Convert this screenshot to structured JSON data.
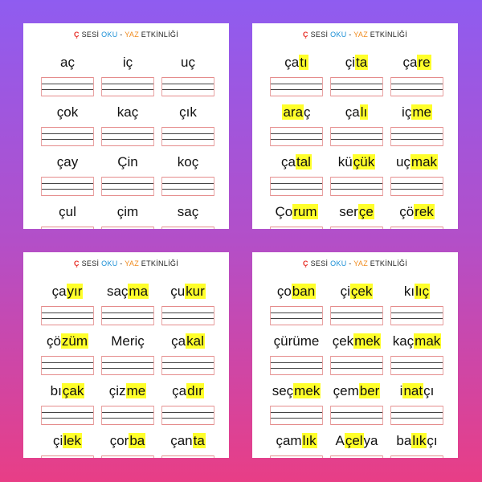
{
  "title": {
    "letter": "Ç",
    "sesi": " SESİ ",
    "oku": "OKU",
    "dash": " - ",
    "yaz": "YAZ",
    "rest": " ETKİNLİĞİ"
  },
  "pages": [
    {
      "words": [
        {
          "pre": "aç",
          "hl": "",
          "post": ""
        },
        {
          "pre": "iç",
          "hl": "",
          "post": ""
        },
        {
          "pre": "uç",
          "hl": "",
          "post": ""
        },
        {
          "pre": "çok",
          "hl": "",
          "post": ""
        },
        {
          "pre": "kaç",
          "hl": "",
          "post": ""
        },
        {
          "pre": "çık",
          "hl": "",
          "post": ""
        },
        {
          "pre": "çay",
          "hl": "",
          "post": ""
        },
        {
          "pre": "Çin",
          "hl": "",
          "post": ""
        },
        {
          "pre": "koç",
          "hl": "",
          "post": ""
        },
        {
          "pre": "çul",
          "hl": "",
          "post": ""
        },
        {
          "pre": "çim",
          "hl": "",
          "post": ""
        },
        {
          "pre": "saç",
          "hl": "",
          "post": ""
        }
      ]
    },
    {
      "words": [
        {
          "pre": "ça",
          "hl": "tı",
          "post": ""
        },
        {
          "pre": "çi",
          "hl": "ta",
          "post": ""
        },
        {
          "pre": "ça",
          "hl": "re",
          "post": ""
        },
        {
          "pre": "",
          "hl": "ara",
          "post": "ç"
        },
        {
          "pre": "ça",
          "hl": "lı",
          "post": ""
        },
        {
          "pre": "iç",
          "hl": "me",
          "post": ""
        },
        {
          "pre": "ça",
          "hl": "tal",
          "post": ""
        },
        {
          "pre": "kü",
          "hl": "çük",
          "post": ""
        },
        {
          "pre": "uç",
          "hl": "mak",
          "post": ""
        },
        {
          "pre": "Ço",
          "hl": "rum",
          "post": ""
        },
        {
          "pre": "ser",
          "hl": "çe",
          "post": ""
        },
        {
          "pre": "çö",
          "hl": "rek",
          "post": ""
        }
      ]
    },
    {
      "words": [
        {
          "pre": "ça",
          "hl": "yır",
          "post": ""
        },
        {
          "pre": "saç",
          "hl": "ma",
          "post": ""
        },
        {
          "pre": "çu",
          "hl": "kur",
          "post": ""
        },
        {
          "pre": "çö",
          "hl": "züm",
          "post": ""
        },
        {
          "pre": "Meriç",
          "hl": "",
          "post": ""
        },
        {
          "pre": "ça",
          "hl": "kal",
          "post": ""
        },
        {
          "pre": "bı",
          "hl": "çak",
          "post": ""
        },
        {
          "pre": "çiz",
          "hl": "me",
          "post": ""
        },
        {
          "pre": "ça",
          "hl": "dır",
          "post": ""
        },
        {
          "pre": "çi",
          "hl": "lek",
          "post": ""
        },
        {
          "pre": "çor",
          "hl": "ba",
          "post": ""
        },
        {
          "pre": "çan",
          "hl": "ta",
          "post": ""
        }
      ]
    },
    {
      "words": [
        {
          "pre": "ço",
          "hl": "ban",
          "post": ""
        },
        {
          "pre": "çi",
          "hl": "çek",
          "post": ""
        },
        {
          "pre": "kı",
          "hl": "lıç",
          "post": ""
        },
        {
          "pre": "çürüme",
          "hl": "",
          "post": ""
        },
        {
          "pre": "çek",
          "hl": "mek",
          "post": ""
        },
        {
          "pre": "kaç",
          "hl": "mak",
          "post": ""
        },
        {
          "pre": "seç",
          "hl": "mek",
          "post": ""
        },
        {
          "pre": "çem",
          "hl": "ber",
          "post": ""
        },
        {
          "pre": "i",
          "hl": "nat",
          "post": "çı"
        },
        {
          "pre": "çam",
          "hl": "lık",
          "post": ""
        },
        {
          "pre": "A",
          "hl": "çel",
          "post": "ya"
        },
        {
          "pre": "ba",
          "hl": "lık",
          "post": "çı"
        }
      ]
    }
  ]
}
